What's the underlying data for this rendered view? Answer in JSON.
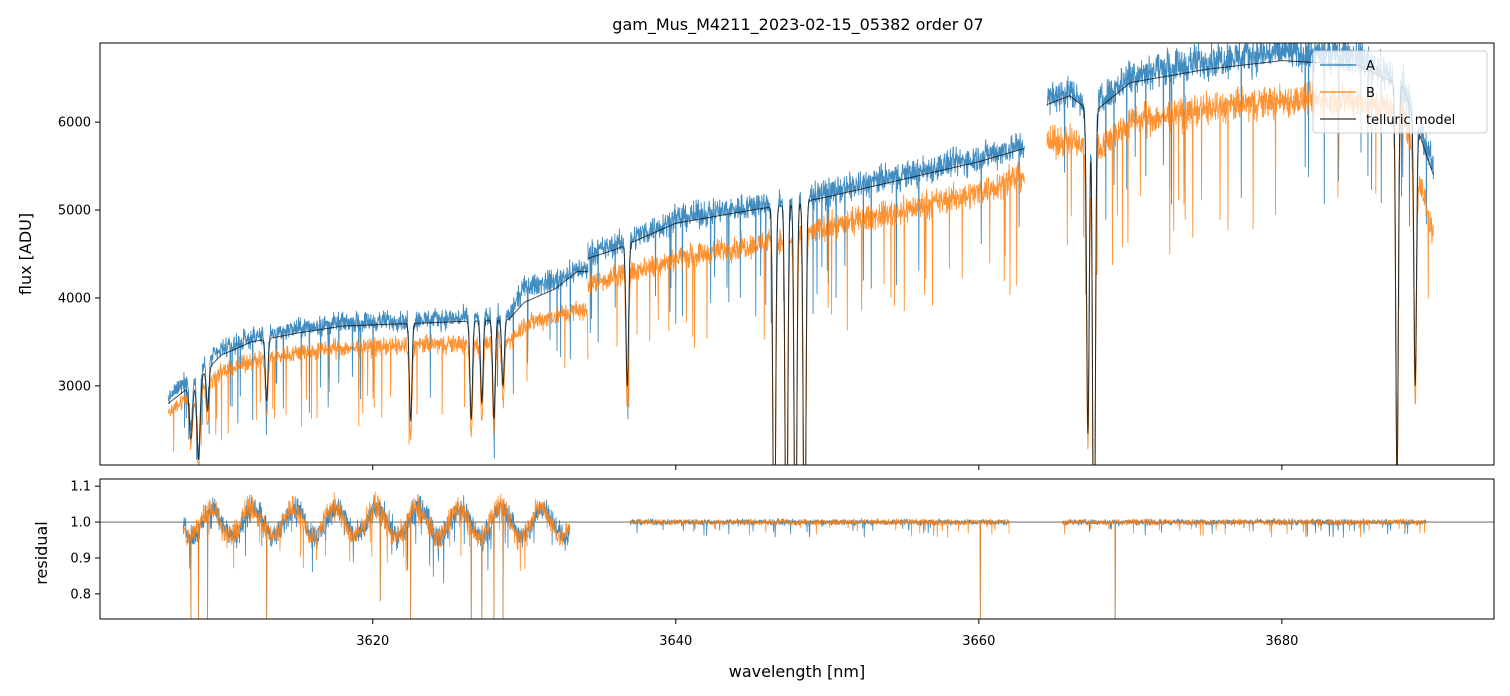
{
  "chart_data": {
    "type": "line",
    "title": "gam_Mus_M4211_2023-02-15_05382  order 07",
    "xlabel": "wavelength [nm]",
    "x_range": [
      3602,
      3694
    ],
    "x_ticks": [
      3620,
      3640,
      3660,
      3680
    ],
    "colors": {
      "A": "#1f77b4",
      "B": "#ff7f0e",
      "model": "#000000"
    },
    "top_panel": {
      "ylabel": "flux [ADU]",
      "ylim": [
        2100,
        6900
      ],
      "y_ticks": [
        3000,
        4000,
        5000,
        6000
      ],
      "legend": {
        "position": "top-right",
        "entries": [
          "A",
          "B",
          "telluric model"
        ]
      },
      "series": [
        {
          "name": "A",
          "continuum_segments": [
            {
              "x": [
                3606.5,
                3608,
                3610,
                3612,
                3615,
                3618,
                3621,
                3624,
                3627,
                3629,
                3630,
                3632,
                3633.5,
                3634.2
              ],
              "y": [
                2850,
                3150,
                3400,
                3550,
                3650,
                3720,
                3740,
                3760,
                3780,
                3800,
                4120,
                4200,
                4330,
                4320
              ]
            },
            {
              "x": [
                3634.2,
                3636,
                3640,
                3645,
                3648,
                3650,
                3655,
                3660,
                3663
              ],
              "y": [
                4500,
                4600,
                4900,
                5050,
                5120,
                5200,
                5400,
                5600,
                5750
              ]
            },
            {
              "x": [
                3664.5,
                3666,
                3667.5,
                3670,
                3675,
                3680,
                3685,
                3688,
                3690
              ],
              "y": [
                6250,
                6350,
                6150,
                6550,
                6700,
                6800,
                6750,
                6450,
                5500
              ]
            }
          ]
        },
        {
          "name": "B",
          "continuum_segments": [
            {
              "x": [
                3606.5,
                3608,
                3610,
                3612,
                3615,
                3618,
                3621,
                3624,
                3627,
                3629,
                3630,
                3632,
                3633.5,
                3634.2
              ],
              "y": [
                2700,
                2900,
                3150,
                3280,
                3380,
                3430,
                3450,
                3470,
                3490,
                3510,
                3700,
                3800,
                3860,
                3850
              ]
            },
            {
              "x": [
                3634.2,
                3636,
                3640,
                3645,
                3648,
                3650,
                3655,
                3660,
                3663
              ],
              "y": [
                4150,
                4250,
                4450,
                4600,
                4700,
                4800,
                5000,
                5200,
                5400
              ]
            },
            {
              "x": [
                3664.5,
                3666,
                3667.5,
                3670,
                3675,
                3680,
                3685,
                3688,
                3690
              ],
              "y": [
                5750,
                5800,
                5650,
                6000,
                6150,
                6250,
                6250,
                6100,
                4700
              ]
            }
          ]
        },
        {
          "name": "telluric model",
          "continuum_segments": [
            {
              "x": [
                3606.5,
                3608,
                3610,
                3612,
                3615,
                3618,
                3621,
                3624,
                3627,
                3629,
                3630,
                3632,
                3633.5,
                3634.2
              ],
              "y": [
                2800,
                3000,
                3350,
                3500,
                3600,
                3680,
                3700,
                3720,
                3740,
                3760,
                3950,
                4100,
                4300,
                4300
              ]
            },
            {
              "x": [
                3634.2,
                3636,
                3640,
                3645,
                3648,
                3650,
                3655,
                3660,
                3663
              ],
              "y": [
                4450,
                4550,
                4850,
                5000,
                5080,
                5150,
                5350,
                5550,
                5700
              ]
            },
            {
              "x": [
                3664.5,
                3666,
                3667.5,
                3670,
                3675,
                3680,
                3685,
                3688,
                3690
              ],
              "y": [
                6200,
                6300,
                6100,
                6450,
                6600,
                6700,
                6650,
                6400,
                5400
              ]
            }
          ]
        }
      ],
      "absorption_lines": [
        {
          "x": 3608.0,
          "depth": 0.2,
          "width": 0.15
        },
        {
          "x": 3608.5,
          "depth": 0.3,
          "width": 0.15
        },
        {
          "x": 3609.1,
          "depth": 0.15,
          "width": 0.12
        },
        {
          "x": 3613.0,
          "depth": 0.2,
          "width": 0.12
        },
        {
          "x": 3622.5,
          "depth": 0.3,
          "width": 0.12
        },
        {
          "x": 3626.5,
          "depth": 0.3,
          "width": 0.12
        },
        {
          "x": 3627.2,
          "depth": 0.25,
          "width": 0.12
        },
        {
          "x": 3628.0,
          "depth": 0.3,
          "width": 0.12
        },
        {
          "x": 3628.6,
          "depth": 0.2,
          "width": 0.12
        },
        {
          "x": 3636.8,
          "depth": 0.35,
          "width": 0.12
        },
        {
          "x": 3646.5,
          "depth": 0.9,
          "width": 0.12
        },
        {
          "x": 3647.3,
          "depth": 0.9,
          "width": 0.12
        },
        {
          "x": 3647.9,
          "depth": 0.9,
          "width": 0.12
        },
        {
          "x": 3648.5,
          "depth": 0.9,
          "width": 0.12
        },
        {
          "x": 3667.2,
          "depth": 0.6,
          "width": 0.12
        },
        {
          "x": 3667.6,
          "depth": 0.95,
          "width": 0.12
        },
        {
          "x": 3687.6,
          "depth": 0.7,
          "width": 0.12
        },
        {
          "x": 3688.8,
          "depth": 0.5,
          "width": 0.12
        }
      ]
    },
    "bottom_panel": {
      "ylabel": "residual",
      "ylim": [
        0.73,
        1.12
      ],
      "y_ticks": [
        0.8,
        0.9,
        1.0,
        1.1
      ],
      "reference_line": 1.0,
      "series": [
        {
          "name": "A",
          "segments": [
            [
              3607.5,
              3633.0
            ],
            [
              3637.0,
              3662.0
            ],
            [
              3665.5,
              3689.5
            ]
          ]
        },
        {
          "name": "B",
          "segments": [
            [
              3607.5,
              3633.0
            ],
            [
              3637.0,
              3662.0
            ],
            [
              3665.5,
              3689.5
            ]
          ]
        }
      ],
      "deep_dips": [
        {
          "x": 3608.0,
          "to": 0.73
        },
        {
          "x": 3608.5,
          "to": 0.73
        },
        {
          "x": 3609.1,
          "to": 0.73
        },
        {
          "x": 3613.0,
          "to": 0.73
        },
        {
          "x": 3620.5,
          "to": 0.78
        },
        {
          "x": 3622.5,
          "to": 0.73
        },
        {
          "x": 3626.5,
          "to": 0.73
        },
        {
          "x": 3627.2,
          "to": 0.73
        },
        {
          "x": 3628.0,
          "to": 0.73
        },
        {
          "x": 3628.6,
          "to": 0.73
        },
        {
          "x": 3660.1,
          "to": 0.73
        },
        {
          "x": 3669.0,
          "to": 0.73
        }
      ]
    }
  }
}
